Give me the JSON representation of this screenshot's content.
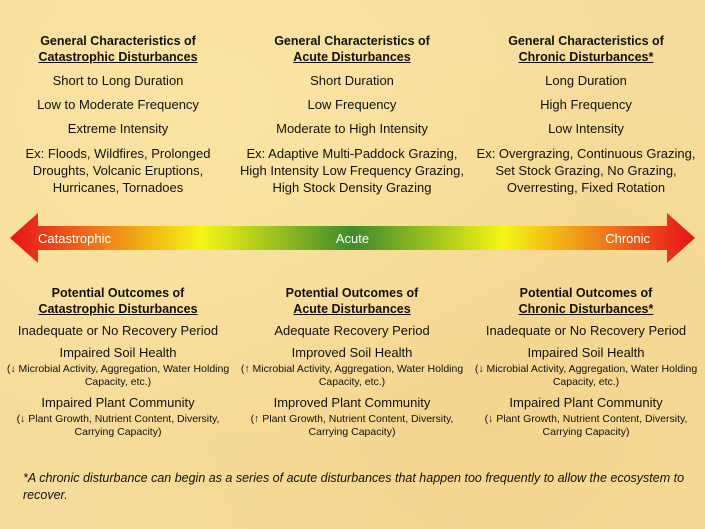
{
  "top": {
    "catastrophic": {
      "heading_line1": "General Characteristics of",
      "heading_line2": "Catastrophic Disturbances",
      "items": [
        "Short to Long Duration",
        "Low to Moderate Frequency",
        "Extreme Intensity"
      ],
      "example": "Ex: Floods, Wildfires, Prolonged Droughts, Volcanic Eruptions, Hurricanes, Tornadoes"
    },
    "acute": {
      "heading_line1": "General Characteristics of",
      "heading_line2": "Acute Disturbances",
      "items": [
        "Short Duration",
        "Low Frequency",
        "Moderate to High Intensity"
      ],
      "example": "Ex: Adaptive Multi-Paddock Grazing, High Intensity Low Frequency Grazing, High Stock Density Grazing"
    },
    "chronic": {
      "heading_line1": "General Characteristics of",
      "heading_line2": "Chronic Disturbances*",
      "items": [
        "Long Duration",
        "High Frequency",
        "Low Intensity"
      ],
      "example": "Ex: Overgrazing, Continuous Grazing, Set Stock Grazing, No Grazing, Overresting, Fixed Rotation"
    }
  },
  "arrow": {
    "left_label": "Catastrophic",
    "mid_label": "Acute",
    "right_label": "Chronic",
    "colors": [
      "#e8101a",
      "#f5f514",
      "#3f8a2c",
      "#f5f514",
      "#e8101a"
    ]
  },
  "bottom": {
    "catastrophic": {
      "heading_line1": "Potential Outcomes of",
      "heading_line2": "Catastrophic Disturbances",
      "recovery": "Inadequate or No Recovery Period",
      "soil": "Impaired Soil Health",
      "soil_sub": "(↓ Microbial Activity, Aggregation, Water Holding Capacity, etc.)",
      "plant": "Impaired Plant Community",
      "plant_sub": "(↓ Plant Growth, Nutrient Content, Diversity, Carrying Capacity)"
    },
    "acute": {
      "heading_line1": "Potential Outcomes of",
      "heading_line2": "Acute Disturbances",
      "recovery": "Adequate Recovery Period",
      "soil": "Improved Soil Health",
      "soil_sub": "(↑ Microbial Activity, Aggregation, Water Holding Capacity, etc.)",
      "plant": "Improved Plant Community",
      "plant_sub": "(↑ Plant Growth, Nutrient Content, Diversity, Carrying Capacity)"
    },
    "chronic": {
      "heading_line1": "Potential Outcomes of",
      "heading_line2": "Chronic Disturbances*",
      "recovery": "Inadequate or No Recovery Period",
      "soil": "Impaired Soil Health",
      "soil_sub": "(↓ Microbial Activity, Aggregation, Water Holding Capacity, etc.)",
      "plant": "Impaired Plant Community",
      "plant_sub": "(↓ Plant Growth, Nutrient Content, Diversity, Carrying Capacity)"
    }
  },
  "footnote": "*A chronic disturbance can begin as a series of acute disturbances that happen too frequently to allow the ecosystem to recover."
}
